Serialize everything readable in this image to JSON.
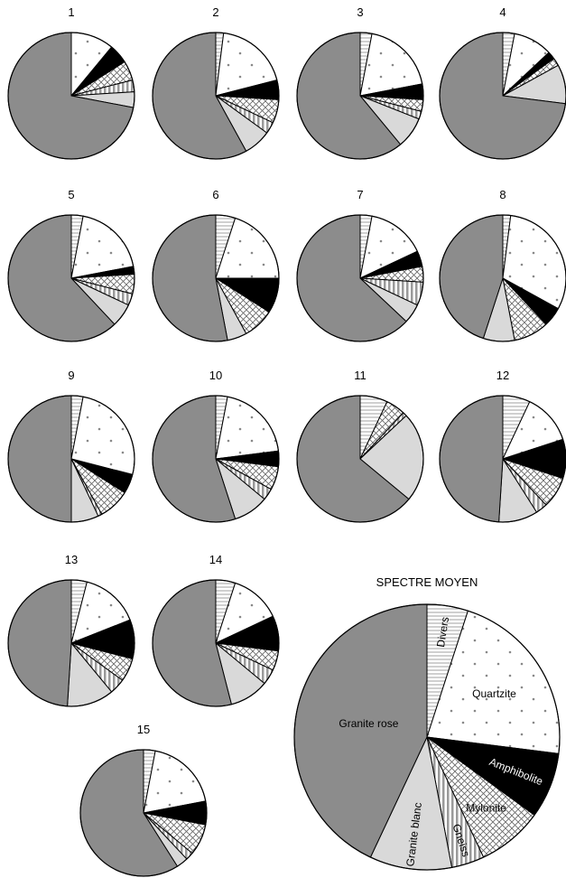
{
  "chart_data": {
    "type": "pie",
    "categories": [
      "Divers",
      "Quartzite",
      "Amphibolite",
      "Mylonite",
      "Gneiss",
      "Granite blanc",
      "Granite rose"
    ],
    "colors": {
      "Divers": "hatch-horizontal",
      "Quartzite": "dotted-white",
      "Amphibolite": "#000000",
      "Mylonite": "crosshatch",
      "Gneiss": "vertical-stripes",
      "Granite blanc": "#d9d9d9",
      "Granite rose": "#8c8c8c"
    },
    "pies": [
      {
        "label": "1",
        "values": [
          0,
          11,
          5,
          5,
          3,
          4,
          72
        ]
      },
      {
        "label": "2",
        "values": [
          2,
          19,
          5,
          6,
          3,
          7,
          58
        ]
      },
      {
        "label": "3",
        "values": [
          3,
          19,
          4,
          3,
          2,
          8,
          61
        ]
      },
      {
        "label": "4",
        "values": [
          3,
          10,
          2,
          2,
          0,
          10,
          73
        ]
      },
      {
        "label": "5",
        "values": [
          3,
          19,
          2,
          5,
          3,
          6,
          62
        ]
      },
      {
        "label": "6",
        "values": [
          5,
          20,
          9,
          8,
          0,
          5,
          53
        ]
      },
      {
        "label": "7",
        "values": [
          3,
          15,
          4,
          4,
          6,
          5,
          63
        ]
      },
      {
        "label": "8",
        "values": [
          2,
          31,
          5,
          9,
          0,
          8,
          45
        ]
      },
      {
        "label": "9",
        "values": [
          3,
          26,
          5,
          8,
          1,
          7,
          50
        ]
      },
      {
        "label": "10",
        "values": [
          3,
          20,
          4,
          6,
          3,
          9,
          55
        ]
      },
      {
        "label": "11",
        "values": [
          7,
          0,
          0,
          5,
          1,
          23,
          64
        ]
      },
      {
        "label": "12",
        "values": [
          7,
          13,
          10,
          8,
          3,
          10,
          49
        ]
      },
      {
        "label": "13",
        "values": [
          4,
          15,
          10,
          6,
          4,
          12,
          49
        ]
      },
      {
        "label": "14",
        "values": [
          5,
          13,
          9,
          5,
          4,
          10,
          54
        ]
      },
      {
        "label": "15",
        "values": [
          3,
          19,
          6,
          8,
          2,
          3,
          59
        ]
      }
    ],
    "average": {
      "title": "SPECTRE MOYEN",
      "values": [
        5,
        22,
        8,
        8,
        4,
        10,
        43
      ],
      "labels": [
        "Divers",
        "Quartzite",
        "Amphibolite",
        "Mylonite",
        "Gneiss",
        "Granite blanc",
        "Granite rose"
      ]
    }
  }
}
